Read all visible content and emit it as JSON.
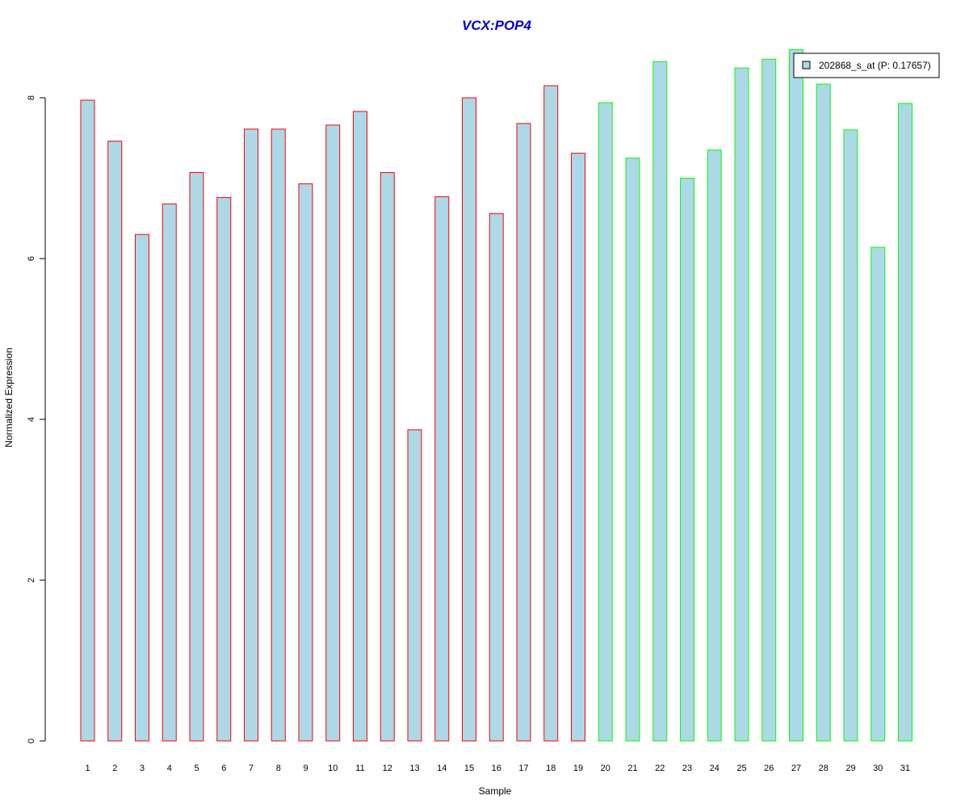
{
  "chart_data": {
    "type": "bar",
    "title": "VCX:POP4",
    "xlabel": "Sample",
    "ylabel": "Normalized Expression",
    "categories": [
      "1",
      "2",
      "3",
      "4",
      "5",
      "6",
      "7",
      "8",
      "9",
      "10",
      "11",
      "12",
      "13",
      "14",
      "15",
      "16",
      "17",
      "18",
      "19",
      "20",
      "21",
      "22",
      "23",
      "24",
      "25",
      "26",
      "27",
      "28",
      "29",
      "30",
      "31"
    ],
    "series": [
      {
        "name": "202868_s_at (P: 0.17657)",
        "values": [
          7.97,
          7.46,
          6.3,
          6.68,
          7.07,
          6.76,
          7.61,
          7.61,
          6.93,
          7.66,
          7.83,
          7.07,
          3.87,
          6.77,
          8.0,
          6.56,
          7.68,
          8.15,
          7.31,
          7.94,
          7.25,
          8.45,
          7.0,
          7.35,
          8.37,
          8.48,
          8.6,
          8.17,
          7.6,
          6.14,
          7.93
        ]
      }
    ],
    "group_of_bar": [
      "red",
      "red",
      "red",
      "red",
      "red",
      "red",
      "red",
      "red",
      "red",
      "red",
      "red",
      "red",
      "red",
      "red",
      "red",
      "red",
      "red",
      "red",
      "red",
      "green",
      "green",
      "green",
      "green",
      "green",
      "green",
      "green",
      "green",
      "green",
      "green",
      "green",
      "green"
    ],
    "yticks": [
      "0",
      "2",
      "4",
      "6",
      "8"
    ],
    "ylim": [
      0,
      8.62
    ],
    "grid": false,
    "legend_position": "top-right",
    "colors": {
      "bar_fill": "#add8e6",
      "red_group_border": "#ff0000",
      "green_group_border": "#00ff00",
      "title": "#0000cc"
    }
  }
}
